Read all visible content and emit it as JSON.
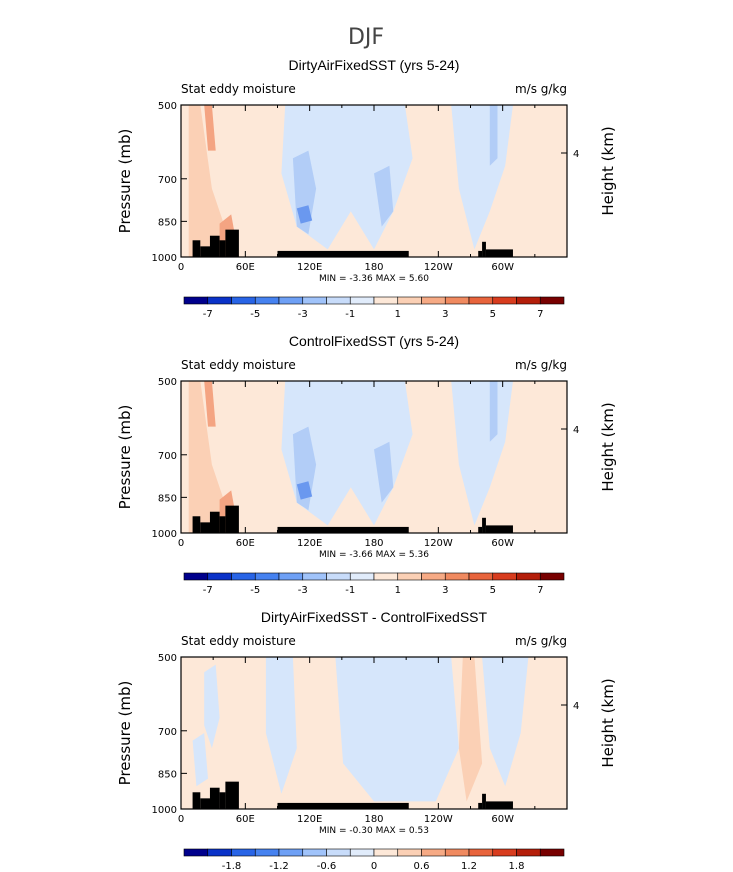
{
  "figure": {
    "title": "DJF"
  },
  "colorbar_colors": [
    "#00008c",
    "#0a32c8",
    "#2864e6",
    "#4682f0",
    "#6ea0f5",
    "#a0c3fa",
    "#c8dcfa",
    "#e1ecfb",
    "#fde8d8",
    "#fbd0b5",
    "#f6aa85",
    "#f08a60",
    "#e8643c",
    "#d83c1e",
    "#b41e0a",
    "#780000"
  ],
  "chart_data": [
    {
      "type": "heatmap",
      "title": "DirtyAirFixedSST (yrs 5-24)",
      "left_label": "Stat eddy moisture",
      "right_label": "m/s g/kg",
      "ylabel": "Pressure (mb)",
      "ylabel_right": "Height (km)",
      "x_ticks": [
        "0",
        "60E",
        "120E",
        "180",
        "120W",
        "60W"
      ],
      "y_ticks": [
        "500",
        "700",
        "850",
        "1000"
      ],
      "y_ticks_right": [
        "4"
      ],
      "minmax_text": "MIN =   -3.36   MAX =    5.60",
      "min": -3.36,
      "max": 5.6,
      "colorbar_labels": [
        "-7",
        "-5",
        "-3",
        "-1",
        "1",
        "3",
        "5",
        "7"
      ]
    },
    {
      "type": "heatmap",
      "title": "ControlFixedSST (yrs 5-24)",
      "left_label": "Stat eddy moisture",
      "right_label": "m/s g/kg",
      "ylabel": "Pressure (mb)",
      "ylabel_right": "Height (km)",
      "x_ticks": [
        "0",
        "60E",
        "120E",
        "180",
        "120W",
        "60W"
      ],
      "y_ticks": [
        "500",
        "700",
        "850",
        "1000"
      ],
      "y_ticks_right": [
        "4"
      ],
      "minmax_text": "MIN =   -3.66   MAX =    5.36",
      "min": -3.66,
      "max": 5.36,
      "colorbar_labels": [
        "-7",
        "-5",
        "-3",
        "-1",
        "1",
        "3",
        "5",
        "7"
      ]
    },
    {
      "type": "heatmap",
      "title": "DirtyAirFixedSST - ControlFixedSST",
      "left_label": "Stat eddy moisture",
      "right_label": "m/s g/kg",
      "ylabel": "Pressure (mb)",
      "ylabel_right": "Height (km)",
      "x_ticks": [
        "0",
        "60E",
        "120E",
        "180",
        "120W",
        "60W"
      ],
      "y_ticks": [
        "500",
        "700",
        "850",
        "1000"
      ],
      "y_ticks_right": [
        "4"
      ],
      "minmax_text": "MIN =   -0.30   MAX =    0.53",
      "min": -0.3,
      "max": 0.53,
      "colorbar_labels": [
        "-1.8",
        "-1.2",
        "-0.6",
        "0",
        "0.6",
        "1.2",
        "1.8"
      ]
    }
  ]
}
